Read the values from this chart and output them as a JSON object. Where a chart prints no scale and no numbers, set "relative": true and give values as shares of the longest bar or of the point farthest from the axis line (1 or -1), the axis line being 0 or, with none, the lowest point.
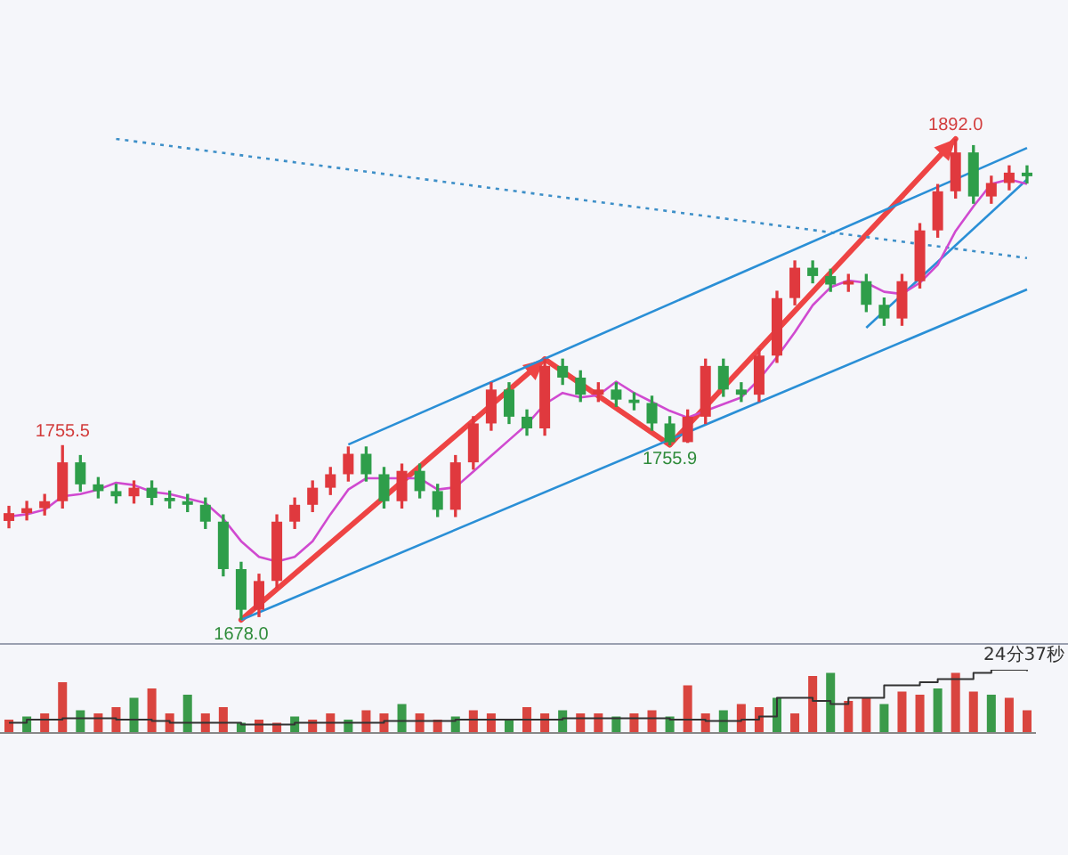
{
  "chart_data": [
    {
      "type": "candlestick",
      "categories": [
        null,
        null,
        null,
        null,
        null,
        null,
        null,
        null,
        null,
        null,
        null,
        null,
        null,
        null,
        null,
        null,
        null,
        null,
        null,
        null,
        null,
        null,
        null,
        null,
        null,
        null,
        null,
        null,
        null,
        null,
        null,
        null,
        null,
        null,
        null,
        null,
        null,
        null,
        null,
        null,
        null,
        null,
        null,
        null,
        null,
        null,
        null,
        null,
        null,
        null,
        null,
        null,
        null,
        null,
        null,
        null,
        null,
        null
      ],
      "ohlc": [
        [
          1722.0,
          1728.5,
          1719.0,
          1725.5
        ],
        [
          1725.5,
          1730.7,
          1722.5,
          1727.7
        ],
        [
          1727.7,
          1733.8,
          1724.7,
          1730.8
        ],
        [
          1730.8,
          1755.5,
          1727.8,
          1748.1
        ],
        [
          1748.1,
          1751.1,
          1735.3,
          1738.3
        ],
        [
          1738.3,
          1741.3,
          1732.3,
          1735.3
        ],
        [
          1735.3,
          1738.3,
          1730.0,
          1733.0
        ],
        [
          1733.0,
          1739.8,
          1730.0,
          1736.8
        ],
        [
          1736.8,
          1739.8,
          1729.3,
          1732.3
        ],
        [
          1732.3,
          1735.3,
          1727.8,
          1730.8
        ],
        [
          1730.8,
          1733.8,
          1726.2,
          1729.2
        ],
        [
          1729.2,
          1732.2,
          1718.7,
          1721.7
        ],
        [
          1721.7,
          1724.7,
          1697.6,
          1700.6
        ],
        [
          1700.6,
          1703.6,
          1678.0,
          1682.5
        ],
        [
          1682.5,
          1698.3,
          1679.5,
          1695.3
        ],
        [
          1695.3,
          1724.7,
          1692.3,
          1721.7
        ],
        [
          1721.7,
          1732.2,
          1718.7,
          1729.2
        ],
        [
          1729.2,
          1739.8,
          1726.2,
          1736.8
        ],
        [
          1736.8,
          1745.8,
          1733.8,
          1742.8
        ],
        [
          1742.8,
          1754.9,
          1739.8,
          1751.9
        ],
        [
          1751.9,
          1754.9,
          1739.8,
          1742.8
        ],
        [
          1742.8,
          1745.8,
          1727.8,
          1730.8
        ],
        [
          1730.8,
          1747.3,
          1727.8,
          1744.3
        ],
        [
          1744.3,
          1747.3,
          1732.3,
          1735.3
        ],
        [
          1735.3,
          1738.3,
          1724.0,
          1727.0
        ],
        [
          1727.0,
          1751.1,
          1724.0,
          1748.1
        ],
        [
          1748.1,
          1768.4,
          1745.1,
          1765.4
        ],
        [
          1765.4,
          1783.5,
          1762.4,
          1780.5
        ],
        [
          1780.5,
          1783.5,
          1765.4,
          1768.4
        ],
        [
          1768.4,
          1771.4,
          1760.2,
          1763.2
        ],
        [
          1763.2,
          1794.0,
          1760.2,
          1791.0
        ],
        [
          1791.0,
          1794.0,
          1782.8,
          1785.8
        ],
        [
          1785.8,
          1788.8,
          1775.2,
          1778.2
        ],
        [
          1778.2,
          1783.5,
          1775.2,
          1780.5
        ],
        [
          1780.5,
          1783.5,
          1773.0,
          1776.0
        ],
        [
          1776.0,
          1779.0,
          1771.5,
          1774.5
        ],
        [
          1774.5,
          1777.5,
          1762.4,
          1765.4
        ],
        [
          1765.4,
          1768.4,
          1755.9,
          1757.1
        ],
        [
          1757.1,
          1771.4,
          1757.0,
          1768.4
        ],
        [
          1768.4,
          1794.0,
          1765.4,
          1791.0
        ],
        [
          1791.0,
          1794.0,
          1777.5,
          1780.5
        ],
        [
          1780.5,
          1783.5,
          1775.2,
          1778.2
        ],
        [
          1778.2,
          1798.6,
          1775.2,
          1795.6
        ],
        [
          1795.6,
          1824.2,
          1792.6,
          1821.2
        ],
        [
          1821.2,
          1837.7,
          1818.2,
          1834.7
        ],
        [
          1834.7,
          1837.7,
          1828.0,
          1831.0
        ],
        [
          1831.0,
          1834.0,
          1824.2,
          1827.2
        ],
        [
          1827.2,
          1831.7,
          1824.2,
          1828.7
        ],
        [
          1828.7,
          1831.7,
          1815.2,
          1818.2
        ],
        [
          1818.2,
          1821.2,
          1809.1,
          1812.1
        ],
        [
          1812.1,
          1831.7,
          1809.1,
          1828.7
        ],
        [
          1828.7,
          1854.3,
          1825.7,
          1851.3
        ],
        [
          1851.3,
          1871.7,
          1848.3,
          1868.7
        ],
        [
          1868.7,
          1892.0,
          1865.7,
          1886.0
        ],
        [
          1886.0,
          1889.0,
          1863.4,
          1866.4
        ],
        [
          1866.4,
          1875.4,
          1863.4,
          1872.4
        ],
        [
          1872.4,
          1880.0,
          1869.4,
          1877.0
        ],
        [
          1877.0,
          1880.0,
          1872.4,
          1875.4
        ]
      ],
      "series": [
        {
          "type": "line",
          "color": "#d04ad0",
          "values": [
            1724,
            1725,
            1727,
            1733,
            1734,
            1736,
            1739,
            1738,
            1735,
            1734,
            1732,
            1730,
            1723,
            1713,
            1706,
            1704,
            1706,
            1713,
            1725,
            1736,
            1741,
            1741,
            1741,
            1741,
            1736,
            1737,
            1744,
            1751,
            1758,
            1765,
            1774,
            1779,
            1777,
            1778,
            1784,
            1779,
            1775,
            1771,
            1768,
            1771,
            1774,
            1777,
            1785,
            1795,
            1806,
            1818,
            1826,
            1829,
            1828,
            1824,
            1823,
            1828,
            1836,
            1851,
            1862,
            1872,
            1874,
            1872
          ]
        },
        {
          "type": "line",
          "color": "#2a8fd6",
          "values": [
            null,
            null,
            null,
            null,
            null,
            null,
            null,
            null,
            null,
            null,
            null,
            null,
            null,
            null,
            null,
            null,
            null,
            null,
            null,
            1756,
            null,
            null,
            null,
            null,
            null,
            null,
            null,
            null,
            null,
            null,
            null,
            null,
            null,
            null,
            null,
            null,
            null,
            null,
            null,
            null,
            null,
            null,
            null,
            null,
            null,
            null,
            null,
            null,
            null,
            null,
            null,
            null,
            null,
            null,
            null,
            null,
            null,
            1888.0
          ]
        },
        {
          "type": "line",
          "color": "#2a8fd6",
          "values": [
            null,
            null,
            null,
            null,
            null,
            null,
            null,
            null,
            null,
            null,
            null,
            null,
            null,
            1678.0,
            null,
            null,
            null,
            null,
            null,
            null,
            null,
            null,
            null,
            null,
            null,
            null,
            null,
            null,
            null,
            null,
            null,
            null,
            null,
            null,
            null,
            null,
            null,
            null,
            null,
            null,
            null,
            null,
            null,
            null,
            null,
            null,
            null,
            null,
            null,
            null,
            null,
            null,
            null,
            null,
            null,
            null,
            null,
            1825
          ]
        },
        {
          "type": "line",
          "color": "#2a8fd6",
          "values": [
            null,
            null,
            null,
            null,
            null,
            null,
            null,
            null,
            null,
            null,
            null,
            null,
            null,
            null,
            null,
            null,
            null,
            null,
            null,
            null,
            null,
            null,
            null,
            null,
            null,
            null,
            null,
            null,
            null,
            null,
            null,
            null,
            null,
            null,
            null,
            null,
            null,
            null,
            null,
            null,
            null,
            null,
            null,
            null,
            null,
            null,
            null,
            null,
            1808,
            null,
            null,
            null,
            null,
            null,
            null,
            null,
            null,
            1874
          ]
        },
        {
          "type": "line",
          "color": "#3d8fc8",
          "line_style": "dotted",
          "values": [
            null,
            null,
            null,
            null,
            null,
            null,
            1892,
            null,
            null,
            null,
            null,
            null,
            null,
            null,
            null,
            null,
            null,
            null,
            null,
            null,
            null,
            null,
            null,
            null,
            null,
            null,
            null,
            null,
            null,
            null,
            null,
            null,
            null,
            null,
            null,
            null,
            null,
            null,
            null,
            null,
            null,
            null,
            null,
            null,
            null,
            null,
            null,
            null,
            null,
            null,
            null,
            null,
            null,
            null,
            null,
            null,
            null,
            1839
          ]
        }
      ],
      "annotations": [
        {
          "text": "1755.5",
          "y": 1755.5
        },
        {
          "text": "1678.0",
          "y": 1678.0
        },
        {
          "text": "1755.9",
          "y": 1755.9
        },
        {
          "text": "1892.0",
          "y": 1892.0
        }
      ]
    },
    {
      "type": "bar",
      "relative": true,
      "categories": [
        null,
        null,
        null,
        null,
        null,
        null,
        null,
        null,
        null,
        null,
        null,
        null,
        null,
        null,
        null,
        null,
        null,
        null,
        null,
        null,
        null,
        null,
        null,
        null,
        null,
        null,
        null,
        null,
        null,
        null,
        null,
        null,
        null,
        null,
        null,
        null,
        null,
        null,
        null,
        null,
        null,
        null,
        null,
        null,
        null,
        null,
        null,
        null,
        null,
        null,
        null,
        null,
        null,
        null,
        null,
        null,
        null,
        null
      ],
      "series": [
        {
          "type": "bar",
          "colors": [
            "#d9453f",
            "#3a9a4a",
            "#d9453f",
            "#d9453f",
            "#3a9a4a",
            "#d9453f",
            "#d9453f",
            "#3a9a4a",
            "#d9453f",
            "#d9453f",
            "#3a9a4a",
            "#d9453f",
            "#d9453f",
            "#3a9a4a",
            "#d9453f",
            "#d9453f",
            "#3a9a4a",
            "#d9453f",
            "#d9453f",
            "#3a9a4a",
            "#d9453f",
            "#d9453f",
            "#3a9a4a",
            "#d9453f",
            "#d9453f",
            "#3a9a4a",
            "#d9453f",
            "#d9453f",
            "#3a9a4a",
            "#d9453f",
            "#d9453f",
            "#3a9a4a",
            "#d9453f",
            "#d9453f",
            "#3a9a4a",
            "#d9453f",
            "#d9453f",
            "#3a9a4a",
            "#d9453f",
            "#d9453f",
            "#3a9a4a",
            "#d9453f",
            "#d9453f",
            "#3a9a4a",
            "#d9453f",
            "#d9453f",
            "#3a9a4a",
            "#d9453f",
            "#d9453f",
            "#3a9a4a",
            "#d9453f",
            "#d9453f",
            "#3a9a4a",
            "#d9453f",
            "#d9453f",
            "#3a9a4a",
            "#d9453f",
            "#d9453f"
          ],
          "values": [
            0.2,
            0.25,
            0.3,
            0.8,
            0.35,
            0.3,
            0.4,
            0.55,
            0.7,
            0.3,
            0.6,
            0.3,
            0.4,
            0.15,
            0.2,
            0.15,
            0.25,
            0.2,
            0.3,
            0.2,
            0.35,
            0.3,
            0.45,
            0.3,
            0.2,
            0.25,
            0.35,
            0.3,
            0.2,
            0.4,
            0.3,
            0.35,
            0.3,
            0.3,
            0.25,
            0.3,
            0.35,
            0.25,
            0.75,
            0.3,
            0.35,
            0.45,
            0.4,
            0.55,
            0.3,
            0.9,
            0.95,
            0.5,
            0.55,
            0.45,
            0.65,
            0.6,
            0.7,
            0.95,
            0.65,
            0.6,
            0.55,
            0.35
          ]
        },
        {
          "type": "step",
          "color": "#333333",
          "values": [
            0.15,
            0.2,
            0.2,
            0.22,
            0.22,
            0.22,
            0.2,
            0.2,
            0.18,
            0.15,
            0.15,
            0.15,
            0.15,
            0.12,
            0.12,
            0.12,
            0.15,
            0.15,
            0.15,
            0.15,
            0.15,
            0.18,
            0.18,
            0.18,
            0.18,
            0.2,
            0.2,
            0.2,
            0.2,
            0.2,
            0.2,
            0.22,
            0.22,
            0.22,
            0.22,
            0.22,
            0.22,
            0.2,
            0.2,
            0.18,
            0.18,
            0.2,
            0.25,
            0.55,
            0.55,
            0.5,
            0.45,
            0.55,
            0.55,
            0.75,
            0.75,
            0.8,
            0.85,
            0.85,
            0.95,
            1.0,
            1.0,
            0.98
          ]
        }
      ],
      "annotations": [
        "24分37秒"
      ]
    }
  ]
}
